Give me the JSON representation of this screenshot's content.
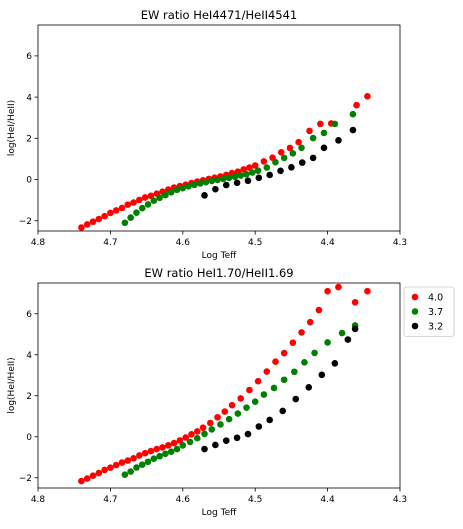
{
  "chart_data": [
    {
      "type": "scatter",
      "title": "EW ratio HeI4471/HeII4541",
      "xlabel": "Log Teff",
      "ylabel": "log(HeI/HeII)",
      "xlim": [
        4.8,
        4.3
      ],
      "ylim": [
        -2.5,
        7.5
      ],
      "xticks": [
        "4.8",
        "4.7",
        "4.6",
        "4.5",
        "4.4",
        "4.3"
      ],
      "yticks": [
        "−2",
        "0",
        "2",
        "4",
        "6"
      ],
      "xtick_values": [
        4.8,
        4.7,
        4.6,
        4.5,
        4.4,
        4.3
      ],
      "ytick_values": [
        -2,
        0,
        2,
        4,
        6
      ],
      "grid": false,
      "legend": "none",
      "series": [
        {
          "color": "#ff0000",
          "x": [
            4.74,
            4.732,
            4.724,
            4.716,
            4.708,
            4.7,
            4.692,
            4.684,
            4.676,
            4.668,
            4.66,
            4.652,
            4.644,
            4.636,
            4.628,
            4.62,
            4.612,
            4.604,
            4.596,
            4.588,
            4.58,
            4.572,
            4.564,
            4.556,
            4.548,
            4.54,
            4.532,
            4.524,
            4.516,
            4.508,
            4.5,
            4.488,
            4.476,
            4.464,
            4.452,
            4.44,
            4.425,
            4.41,
            4.395,
            4.36,
            4.345
          ],
          "y": [
            -2.33,
            -2.18,
            -2.05,
            -1.92,
            -1.78,
            -1.62,
            -1.5,
            -1.38,
            -1.22,
            -1.12,
            -0.99,
            -0.87,
            -0.79,
            -0.69,
            -0.59,
            -0.49,
            -0.39,
            -0.32,
            -0.25,
            -0.17,
            -0.1,
            -0.04,
            0.03,
            0.09,
            0.15,
            0.22,
            0.31,
            0.38,
            0.49,
            0.58,
            0.68,
            0.88,
            1.06,
            1.32,
            1.53,
            1.81,
            2.36,
            2.7,
            2.72,
            3.61,
            4.04
          ]
        },
        {
          "color": "#008000",
          "x": [
            4.68,
            4.672,
            4.664,
            4.656,
            4.648,
            4.64,
            4.632,
            4.624,
            4.616,
            4.608,
            4.6,
            4.592,
            4.584,
            4.576,
            4.568,
            4.56,
            4.552,
            4.544,
            4.536,
            4.528,
            4.52,
            4.512,
            4.504,
            4.496,
            4.484,
            4.472,
            4.46,
            4.448,
            4.436,
            4.42,
            4.405,
            4.39,
            4.365
          ],
          "y": [
            -2.1,
            -1.85,
            -1.61,
            -1.39,
            -1.21,
            -1.03,
            -0.89,
            -0.76,
            -0.62,
            -0.5,
            -0.42,
            -0.33,
            -0.26,
            -0.19,
            -0.13,
            -0.07,
            -0.02,
            0.03,
            0.08,
            0.13,
            0.19,
            0.25,
            0.34,
            0.43,
            0.58,
            0.84,
            1.05,
            1.27,
            1.54,
            2.01,
            2.26,
            2.7,
            3.17
          ]
        },
        {
          "color": "#000000",
          "x": [
            4.57,
            4.555,
            4.54,
            4.525,
            4.51,
            4.495,
            4.48,
            4.465,
            4.45,
            4.435,
            4.42,
            4.405,
            4.385,
            4.365
          ],
          "y": [
            -0.77,
            -0.47,
            -0.27,
            -0.16,
            -0.06,
            0.08,
            0.22,
            0.42,
            0.59,
            0.82,
            1.05,
            1.54,
            1.9,
            2.4
          ]
        }
      ]
    },
    {
      "type": "scatter",
      "title": "EW ratio HeI1.70/HeII1.69",
      "xlabel": "Log Teff",
      "ylabel": "log(HeI/HeII)",
      "xlim": [
        4.8,
        4.3
      ],
      "ylim": [
        -2.5,
        7.5
      ],
      "xticks": [
        "4.8",
        "4.7",
        "4.6",
        "4.5",
        "4.4",
        "4.3"
      ],
      "yticks": [
        "−2",
        "0",
        "2",
        "4",
        "6"
      ],
      "xtick_values": [
        4.8,
        4.7,
        4.6,
        4.5,
        4.4,
        4.3
      ],
      "ytick_values": [
        -2,
        0,
        2,
        4,
        6
      ],
      "grid": false,
      "legend": "outside-right-top",
      "series": [
        {
          "name": "4.0",
          "color": "#ff0000",
          "x": [
            4.74,
            4.732,
            4.724,
            4.716,
            4.708,
            4.7,
            4.692,
            4.684,
            4.676,
            4.668,
            4.66,
            4.652,
            4.644,
            4.636,
            4.628,
            4.62,
            4.612,
            4.604,
            4.596,
            4.588,
            4.58,
            4.572,
            4.562,
            4.552,
            4.542,
            4.532,
            4.52,
            4.508,
            4.496,
            4.484,
            4.472,
            4.46,
            4.448,
            4.436,
            4.424,
            4.412,
            4.4,
            4.385,
            4.362,
            4.345
          ],
          "y": [
            -2.16,
            -2.04,
            -1.9,
            -1.77,
            -1.62,
            -1.51,
            -1.38,
            -1.26,
            -1.16,
            -1.05,
            -0.91,
            -0.8,
            -0.7,
            -0.6,
            -0.52,
            -0.42,
            -0.31,
            -0.18,
            -0.04,
            0.12,
            0.26,
            0.44,
            0.67,
            0.95,
            1.23,
            1.54,
            1.87,
            2.28,
            2.71,
            3.18,
            3.66,
            4.08,
            4.59,
            5.09,
            5.59,
            6.18,
            7.1,
            7.3,
            6.56,
            7.1
          ]
        },
        {
          "name": "3.7",
          "color": "#008000",
          "x": [
            4.68,
            4.672,
            4.664,
            4.656,
            4.648,
            4.64,
            4.632,
            4.624,
            4.616,
            4.608,
            4.6,
            4.59,
            4.58,
            4.57,
            4.56,
            4.548,
            4.536,
            4.524,
            4.512,
            4.5,
            4.488,
            4.474,
            4.46,
            4.446,
            4.432,
            4.418,
            4.4,
            4.38,
            4.362
          ],
          "y": [
            -1.85,
            -1.7,
            -1.5,
            -1.36,
            -1.22,
            -1.07,
            -0.95,
            -0.83,
            -0.73,
            -0.6,
            -0.42,
            -0.25,
            -0.07,
            0.14,
            0.36,
            0.6,
            0.86,
            1.13,
            1.42,
            1.71,
            2.06,
            2.38,
            2.78,
            3.17,
            3.63,
            4.09,
            4.6,
            5.06,
            5.43
          ]
        },
        {
          "name": "3.2",
          "color": "#000000",
          "x": [
            4.57,
            4.555,
            4.54,
            4.525,
            4.51,
            4.495,
            4.48,
            4.462,
            4.444,
            4.426,
            4.408,
            4.39,
            4.372,
            4.362
          ],
          "y": [
            -0.6,
            -0.4,
            -0.19,
            -0.05,
            0.13,
            0.5,
            0.82,
            1.26,
            1.84,
            2.41,
            3.02,
            3.58,
            4.74,
            5.26
          ]
        }
      ]
    }
  ]
}
